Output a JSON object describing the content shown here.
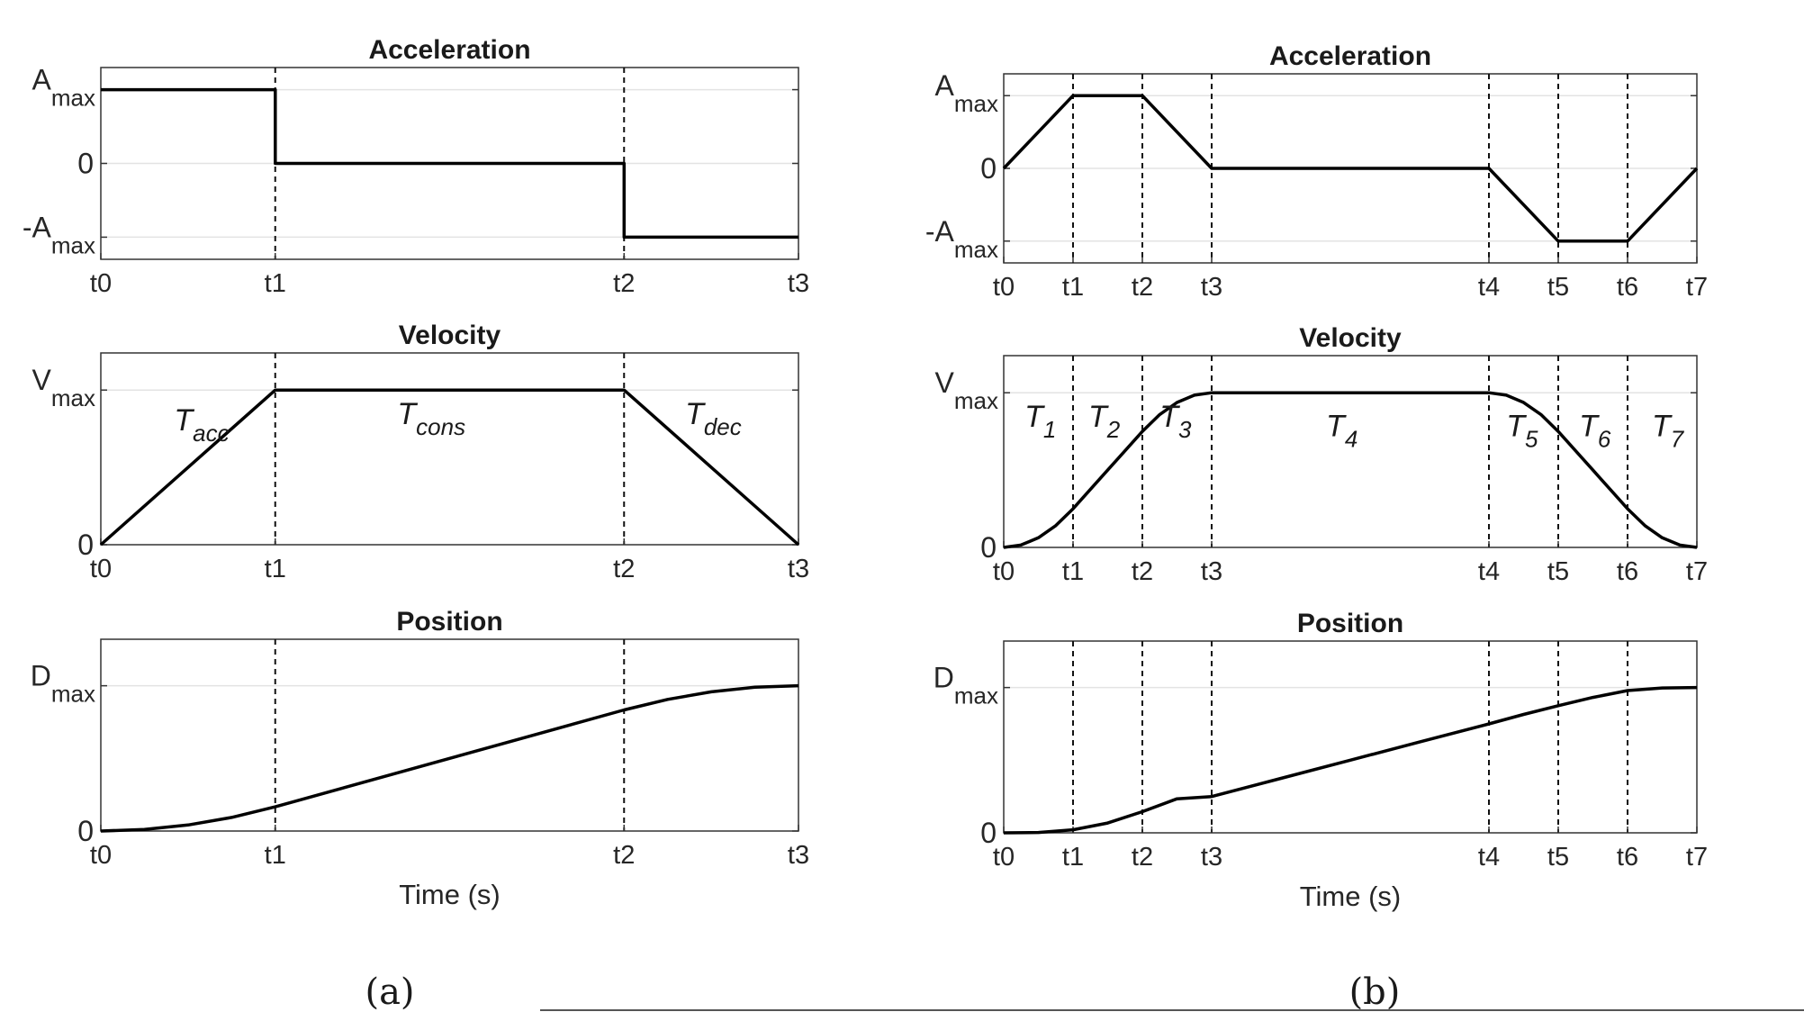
{
  "figure": {
    "caption_a": "(a)",
    "caption_b": "(b)"
  },
  "chart_data": [
    {
      "id": "a-acceleration",
      "type": "line",
      "title": "Acceleration",
      "xlabel": "",
      "x_ticks": [
        0,
        1,
        3,
        4
      ],
      "x_tick_labels": [
        "t0",
        "t1",
        "t2",
        "t3"
      ],
      "xlim": [
        0,
        4
      ],
      "ylim": [
        -1.3,
        1.3
      ],
      "y_ticks": [
        {
          "value": 1,
          "base": "A",
          "sub": "max"
        },
        {
          "value": 0,
          "base": "0",
          "sub": ""
        },
        {
          "value": -1,
          "base": "-A",
          "sub": "max"
        }
      ],
      "grid_y": [
        1,
        0,
        -1
      ],
      "vlines": [
        1,
        3
      ],
      "series": [
        {
          "x": [
            0,
            1,
            1,
            3,
            3,
            4
          ],
          "y": [
            1,
            1,
            0,
            0,
            -1,
            -1
          ]
        }
      ]
    },
    {
      "id": "a-velocity",
      "type": "line",
      "title": "Velocity",
      "xlabel": "",
      "x_ticks": [
        0,
        1,
        3,
        4
      ],
      "x_tick_labels": [
        "t0",
        "t1",
        "t2",
        "t3"
      ],
      "xlim": [
        0,
        4
      ],
      "ylim": [
        0,
        1.24
      ],
      "y_ticks": [
        {
          "value": 1,
          "base": "V",
          "sub": "max"
        },
        {
          "value": 0,
          "base": "0",
          "sub": ""
        }
      ],
      "grid_y": [
        1
      ],
      "vlines": [
        1,
        3
      ],
      "series": [
        {
          "x": [
            0,
            1,
            3,
            4
          ],
          "y": [
            0,
            1,
            1,
            0
          ]
        }
      ],
      "annotations": [
        {
          "base": "T",
          "sub": "acc",
          "x": 0.42,
          "y": 0.74
        },
        {
          "base": "T",
          "sub": "cons",
          "x": 1.7,
          "y": 0.78
        },
        {
          "base": "T",
          "sub": "dec",
          "x": 3.35,
          "y": 0.78
        }
      ]
    },
    {
      "id": "a-position",
      "type": "line",
      "title": "Position",
      "xlabel": "Time (s)",
      "x_ticks": [
        0,
        1,
        3,
        4
      ],
      "x_tick_labels": [
        "t0",
        "t1",
        "t2",
        "t3"
      ],
      "xlim": [
        0,
        4
      ],
      "ylim": [
        0,
        1.32
      ],
      "y_ticks": [
        {
          "value": 1,
          "base": "D",
          "sub": "max"
        },
        {
          "value": 0,
          "base": "0",
          "sub": ""
        }
      ],
      "grid_y": [
        1
      ],
      "vlines": [
        1,
        3
      ],
      "series": [
        {
          "x": [
            0,
            0.25,
            0.5,
            0.75,
            1,
            1.5,
            2,
            2.5,
            3,
            3.25,
            3.5,
            3.75,
            4
          ],
          "y": [
            0,
            0.0104,
            0.0417,
            0.0938,
            0.1667,
            0.3333,
            0.5,
            0.6667,
            0.8333,
            0.9063,
            0.9583,
            0.9896,
            1
          ]
        }
      ]
    },
    {
      "id": "b-acceleration",
      "type": "line",
      "title": "Acceleration",
      "xlabel": "",
      "x_ticks": [
        0,
        1,
        2,
        3,
        7,
        8,
        9,
        10
      ],
      "x_tick_labels": [
        "t0",
        "t1",
        "t2",
        "t3",
        "t4",
        "t5",
        "t6",
        "t7"
      ],
      "xlim": [
        0,
        10
      ],
      "ylim": [
        -1.3,
        1.3
      ],
      "y_ticks": [
        {
          "value": 1,
          "base": "A",
          "sub": "max"
        },
        {
          "value": 0,
          "base": "0",
          "sub": ""
        },
        {
          "value": -1,
          "base": "-A",
          "sub": "max"
        }
      ],
      "grid_y": [
        1,
        0,
        -1
      ],
      "vlines": [
        1,
        2,
        3,
        7,
        8,
        9
      ],
      "series": [
        {
          "x": [
            0,
            1,
            2,
            3,
            7,
            8,
            9,
            10
          ],
          "y": [
            0,
            1,
            1,
            0,
            0,
            -1,
            -1,
            0
          ]
        }
      ]
    },
    {
      "id": "b-velocity",
      "type": "line",
      "title": "Velocity",
      "xlabel": "",
      "x_ticks": [
        0,
        1,
        2,
        3,
        7,
        8,
        9,
        10
      ],
      "x_tick_labels": [
        "t0",
        "t1",
        "t2",
        "t3",
        "t4",
        "t5",
        "t6",
        "t7"
      ],
      "xlim": [
        0,
        10
      ],
      "ylim": [
        0,
        1.24
      ],
      "y_ticks": [
        {
          "value": 1,
          "base": "V",
          "sub": "max"
        },
        {
          "value": 0,
          "base": "0",
          "sub": ""
        }
      ],
      "grid_y": [
        1
      ],
      "vlines": [
        1,
        2,
        3,
        7,
        8,
        9
      ],
      "series": [
        {
          "x": [
            0,
            0.25,
            0.5,
            0.75,
            1,
            1.5,
            2,
            2.25,
            2.5,
            2.75,
            3,
            5,
            7,
            7.25,
            7.5,
            7.75,
            8,
            8.5,
            9,
            9.25,
            9.5,
            9.75,
            10
          ],
          "y": [
            0,
            0.0156,
            0.0625,
            0.1406,
            0.25,
            0.5,
            0.75,
            0.8594,
            0.9375,
            0.9844,
            1,
            1,
            1,
            0.9844,
            0.9375,
            0.8594,
            0.75,
            0.5,
            0.25,
            0.1406,
            0.0625,
            0.0156,
            0
          ]
        }
      ],
      "annotations": [
        {
          "base": "T",
          "sub": "1",
          "x": 0.3,
          "y": 0.78
        },
        {
          "base": "T",
          "sub": "2",
          "x": 1.22,
          "y": 0.78
        },
        {
          "base": "T",
          "sub": "3",
          "x": 2.25,
          "y": 0.78
        },
        {
          "base": "T",
          "sub": "4",
          "x": 4.65,
          "y": 0.72
        },
        {
          "base": "T",
          "sub": "5",
          "x": 7.25,
          "y": 0.72
        },
        {
          "base": "T",
          "sub": "6",
          "x": 8.3,
          "y": 0.72
        },
        {
          "base": "T",
          "sub": "7",
          "x": 9.35,
          "y": 0.72
        }
      ]
    },
    {
      "id": "b-position",
      "type": "line",
      "title": "Position",
      "xlabel": "Time (s)",
      "x_ticks": [
        0,
        1,
        2,
        3,
        7,
        8,
        9,
        10
      ],
      "x_tick_labels": [
        "t0",
        "t1",
        "t2",
        "t3",
        "t4",
        "t5",
        "t6",
        "t7"
      ],
      "xlim": [
        0,
        10
      ],
      "ylim": [
        0,
        1.32
      ],
      "y_ticks": [
        {
          "value": 1,
          "base": "D",
          "sub": "max"
        },
        {
          "value": 0,
          "base": "0",
          "sub": ""
        }
      ],
      "grid_y": [
        1
      ],
      "vlines": [
        1,
        2,
        3,
        7,
        8,
        9
      ],
      "series": [
        {
          "x": [
            0,
            0.5,
            1,
            1.5,
            2,
            2.5,
            3,
            4,
            5,
            6,
            7,
            7.5,
            8,
            8.5,
            9,
            9.5,
            10
          ],
          "y": [
            0,
            0.0026,
            0.0208,
            0.0677,
            0.1458,
            0.2344,
            0.25,
            0.375,
            0.5,
            0.625,
            0.75,
            0.8151,
            0.875,
            0.9323,
            0.9792,
            0.9974,
            1
          ]
        }
      ]
    }
  ]
}
